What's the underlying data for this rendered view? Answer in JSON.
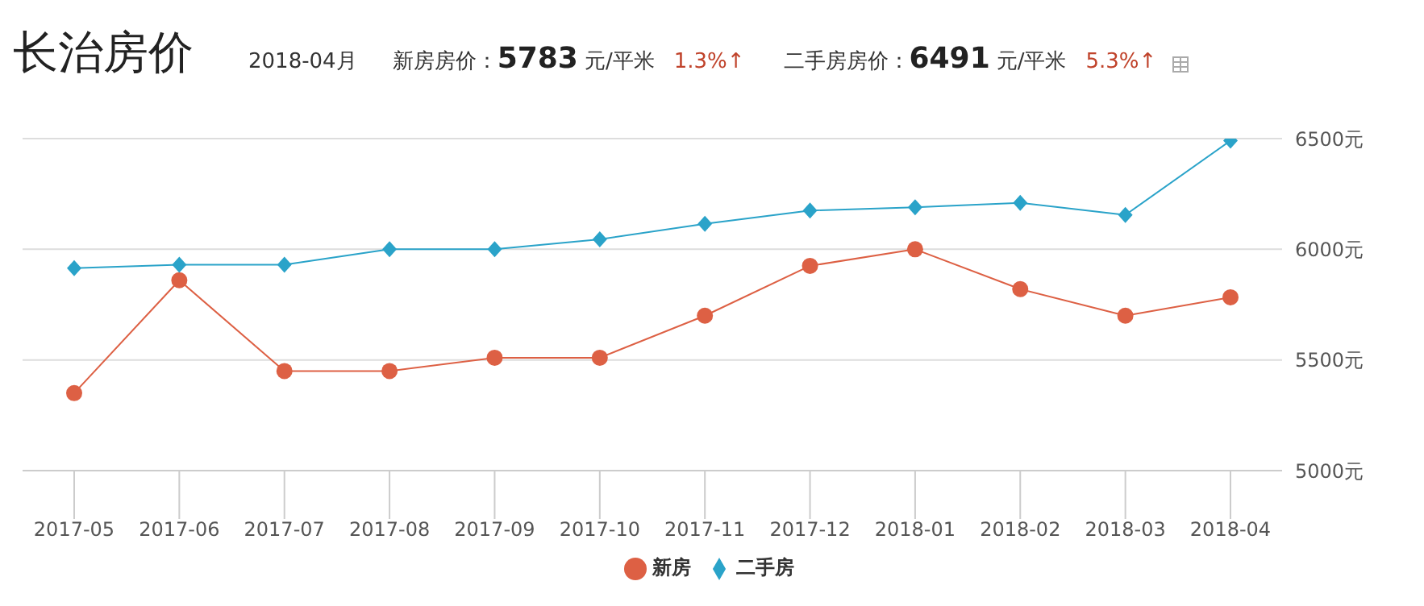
{
  "chart_data": {
    "type": "line",
    "title": "长治房价",
    "annotations": [
      "2018-04月",
      "新房房价：",
      "5783",
      "元/平米",
      "1.3%↑",
      "二手房房价：",
      "6491",
      "元/平米",
      "5.3%↑"
    ],
    "categories": [
      "2017-05",
      "2017-06",
      "2017-07",
      "2017-08",
      "2017-09",
      "2017-10",
      "2017-11",
      "2017-12",
      "2018-01",
      "2018-02",
      "2018-03",
      "2018-04"
    ],
    "series": [
      {
        "name": "新房",
        "color": "#dd6044",
        "marker": "circle",
        "values": [
          5350,
          5860,
          5450,
          5450,
          5510,
          5510,
          5700,
          5925,
          6000,
          5820,
          5700,
          5783
        ]
      },
      {
        "name": "二手房",
        "color": "#2aa3c9",
        "marker": "diamond",
        "values": [
          5915,
          5930,
          5930,
          6000,
          6000,
          6045,
          6115,
          6175,
          6190,
          6210,
          6155,
          6491
        ]
      }
    ],
    "ylim": [
      5000,
      6500
    ],
    "yticks": [
      {
        "value": 5000,
        "label": "5000元"
      },
      {
        "value": 5500,
        "label": "5500元"
      },
      {
        "value": 6000,
        "label": "6000元"
      },
      {
        "value": 6500,
        "label": "6500元"
      }
    ],
    "grid": "y",
    "legend": "bottom",
    "line_style": "solid"
  }
}
